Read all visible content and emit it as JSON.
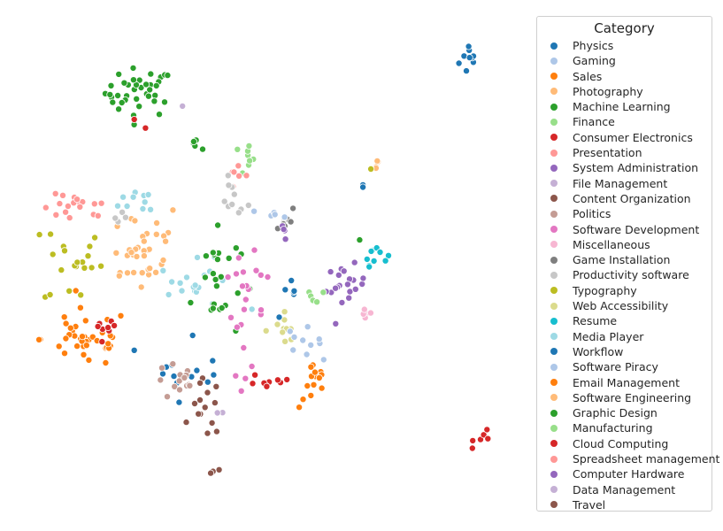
{
  "chart_data": {
    "type": "scatter",
    "title": "",
    "xlabel": "",
    "ylabel": "",
    "axes_visible": false,
    "grid": false,
    "legend": {
      "title": "Category",
      "placement": "right"
    },
    "categories": [
      {
        "name": "Physics",
        "color": "#1f77b4"
      },
      {
        "name": "Gaming",
        "color": "#aec7e8"
      },
      {
        "name": "Sales",
        "color": "#ff7f0e"
      },
      {
        "name": "Photography",
        "color": "#ffbb78"
      },
      {
        "name": "Machine Learning",
        "color": "#2ca02c"
      },
      {
        "name": "Finance",
        "color": "#98df8a"
      },
      {
        "name": "Consumer Electronics",
        "color": "#d62728"
      },
      {
        "name": "Presentation",
        "color": "#ff9896"
      },
      {
        "name": "System Administration",
        "color": "#9467bd"
      },
      {
        "name": "File Management",
        "color": "#c5b0d5"
      },
      {
        "name": "Content Organization",
        "color": "#8c564b"
      },
      {
        "name": "Politics",
        "color": "#c49c94"
      },
      {
        "name": "Software Development",
        "color": "#e377c2"
      },
      {
        "name": "Miscellaneous",
        "color": "#f7b6d2"
      },
      {
        "name": "Game Installation",
        "color": "#7f7f7f"
      },
      {
        "name": "Productivity software",
        "color": "#c7c7c7"
      },
      {
        "name": "Typography",
        "color": "#bcbd22"
      },
      {
        "name": "Web Accessibility",
        "color": "#dbdb8d"
      },
      {
        "name": "Resume",
        "color": "#17becf"
      },
      {
        "name": "Media Player",
        "color": "#9edae5"
      },
      {
        "name": "Workflow",
        "color": "#1f77b4"
      },
      {
        "name": "Software Piracy",
        "color": "#aec7e8"
      },
      {
        "name": "Email Management",
        "color": "#ff7f0e"
      },
      {
        "name": "Software Engineering",
        "color": "#ffbb78"
      },
      {
        "name": "Graphic Design",
        "color": "#2ca02c"
      },
      {
        "name": "Manufacturing",
        "color": "#98df8a"
      },
      {
        "name": "Cloud Computing",
        "color": "#d62728"
      },
      {
        "name": "Spreadsheet management",
        "color": "#ff9896"
      },
      {
        "name": "Computer Hardware",
        "color": "#9467bd"
      },
      {
        "name": "Data Management",
        "color": "#c5b0d5"
      },
      {
        "name": "Travel",
        "color": "#8c564b"
      }
    ],
    "xlim": [
      0,
      100
    ],
    "ylim": [
      0,
      100
    ],
    "clusters": [
      {
        "category": "Physics",
        "cx": 90.5,
        "cy": 92.5,
        "sx": 1.2,
        "sy": 1.8,
        "n": 10
      },
      {
        "category": "Machine Learning",
        "cx": 23.0,
        "cy": 85.5,
        "sx": 3.5,
        "sy": 2.5,
        "n": 38
      },
      {
        "category": "Graphic Design",
        "cx": 35.0,
        "cy": 75.5,
        "sx": 1.2,
        "sy": 0.8,
        "n": 5
      },
      {
        "category": "Consumer Electronics",
        "cx": 24.0,
        "cy": 79.0,
        "sx": 1.0,
        "sy": 0.8,
        "n": 2
      },
      {
        "category": "Data Management",
        "cx": 31.0,
        "cy": 82.0,
        "sx": 0.5,
        "sy": 0.5,
        "n": 1
      },
      {
        "category": "Finance",
        "cx": 44.0,
        "cy": 72.0,
        "sx": 1.5,
        "sy": 2.0,
        "n": 8
      },
      {
        "category": "Presentation",
        "cx": 43.0,
        "cy": 68.0,
        "sx": 1.0,
        "sy": 1.5,
        "n": 6
      },
      {
        "category": "Productivity software",
        "cx": 42.0,
        "cy": 63.5,
        "sx": 1.5,
        "sy": 2.0,
        "n": 10
      },
      {
        "category": "Photography",
        "cx": 71.5,
        "cy": 71.0,
        "sx": 0.8,
        "sy": 0.8,
        "n": 4
      },
      {
        "category": "Typography",
        "cx": 69.5,
        "cy": 70.0,
        "sx": 0.5,
        "sy": 0.5,
        "n": 2
      },
      {
        "category": "Workflow",
        "cx": 68.0,
        "cy": 66.5,
        "sx": 0.5,
        "sy": 0.5,
        "n": 1
      },
      {
        "category": "Spreadsheet management",
        "cx": 10.0,
        "cy": 61.5,
        "sx": 3.5,
        "sy": 1.5,
        "n": 18
      },
      {
        "category": "Typography",
        "cx": 9.5,
        "cy": 51.0,
        "sx": 3.0,
        "sy": 5.0,
        "n": 20
      },
      {
        "category": "Software Engineering",
        "cx": 23.0,
        "cy": 54.0,
        "sx": 4.5,
        "sy": 5.0,
        "n": 28
      },
      {
        "category": "Media Player",
        "cx": 24.0,
        "cy": 63.5,
        "sx": 2.5,
        "sy": 1.5,
        "n": 10
      },
      {
        "category": "Game Installation",
        "cx": 52.5,
        "cy": 59.5,
        "sx": 1.2,
        "sy": 1.5,
        "n": 8
      },
      {
        "category": "Software Piracy",
        "cx": 50.5,
        "cy": 60.0,
        "sx": 1.2,
        "sy": 1.0,
        "n": 5
      },
      {
        "category": "System Administration",
        "cx": 52.0,
        "cy": 57.5,
        "sx": 0.8,
        "sy": 1.0,
        "n": 4
      },
      {
        "category": "Resume",
        "cx": 71.0,
        "cy": 52.5,
        "sx": 1.2,
        "sy": 1.2,
        "n": 10
      },
      {
        "category": "Graphic Design",
        "cx": 67.5,
        "cy": 55.0,
        "sx": 0.5,
        "sy": 0.5,
        "n": 1
      },
      {
        "category": "Media Player",
        "cx": 35.0,
        "cy": 46.0,
        "sx": 4.0,
        "sy": 2.5,
        "n": 18
      },
      {
        "category": "Graphic Design",
        "cx": 38.5,
        "cy": 47.0,
        "sx": 2.5,
        "sy": 6.5,
        "n": 26
      },
      {
        "category": "Physics",
        "cx": 33.5,
        "cy": 31.5,
        "sx": 4.0,
        "sy": 4.5,
        "n": 14
      },
      {
        "category": "Computer Hardware",
        "cx": 65.0,
        "cy": 45.5,
        "sx": 2.0,
        "sy": 2.2,
        "n": 20
      },
      {
        "category": "Miscellaneous",
        "cx": 69.0,
        "cy": 40.5,
        "sx": 0.8,
        "sy": 1.0,
        "n": 5
      },
      {
        "category": "Finance",
        "cx": 59.0,
        "cy": 44.0,
        "sx": 1.5,
        "sy": 1.2,
        "n": 5
      },
      {
        "category": "Software Development",
        "cx": 44.5,
        "cy": 40.0,
        "sx": 2.0,
        "sy": 6.0,
        "n": 20
      },
      {
        "category": "Web Accessibility",
        "cx": 52.0,
        "cy": 37.0,
        "sx": 2.0,
        "sy": 1.5,
        "n": 10
      },
      {
        "category": "Gaming",
        "cx": 56.0,
        "cy": 34.5,
        "sx": 2.0,
        "sy": 1.5,
        "n": 10
      },
      {
        "category": "Workflow",
        "cx": 53.5,
        "cy": 43.0,
        "sx": 1.5,
        "sy": 2.0,
        "n": 6
      },
      {
        "category": "Email Management",
        "cx": 58.5,
        "cy": 25.5,
        "sx": 1.5,
        "sy": 2.5,
        "n": 14
      },
      {
        "category": "Consumer Electronics",
        "cx": 50.0,
        "cy": 26.5,
        "sx": 2.5,
        "sy": 1.2,
        "n": 10
      },
      {
        "category": "Sales",
        "cx": 12.0,
        "cy": 35.0,
        "sx": 4.5,
        "sy": 3.0,
        "n": 40
      },
      {
        "category": "Consumer Electronics",
        "cx": 15.5,
        "cy": 36.0,
        "sx": 1.5,
        "sy": 2.0,
        "n": 8
      },
      {
        "category": "Politics",
        "cx": 31.0,
        "cy": 26.0,
        "sx": 2.5,
        "sy": 2.0,
        "n": 14
      },
      {
        "category": "Travel",
        "cx": 36.5,
        "cy": 20.5,
        "sx": 1.5,
        "sy": 3.0,
        "n": 14
      },
      {
        "category": "Data Management",
        "cx": 39.0,
        "cy": 20.0,
        "sx": 0.8,
        "sy": 0.8,
        "n": 3
      },
      {
        "category": "Software Engineering",
        "cx": 22.0,
        "cy": 50.5,
        "sx": 2.0,
        "sy": 2.0,
        "n": 8
      },
      {
        "category": "Productivity software",
        "cx": 19.0,
        "cy": 58.5,
        "sx": 1.5,
        "sy": 1.0,
        "n": 4
      },
      {
        "category": "Software Development",
        "cx": 48.0,
        "cy": 48.5,
        "sx": 1.2,
        "sy": 0.8,
        "n": 3
      },
      {
        "category": "Cloud Computing",
        "cx": 93.5,
        "cy": 15.0,
        "sx": 1.2,
        "sy": 1.0,
        "n": 6
      },
      {
        "category": "Travel",
        "cx": 38.0,
        "cy": 7.5,
        "sx": 0.5,
        "sy": 0.8,
        "n": 4
      },
      {
        "category": "Physics",
        "cx": 68.0,
        "cy": 66.0,
        "sx": 0.5,
        "sy": 0.5,
        "n": 1
      }
    ]
  }
}
